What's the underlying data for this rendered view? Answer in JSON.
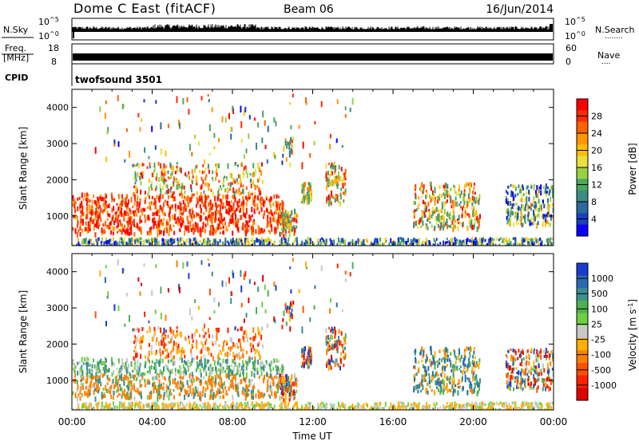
{
  "header": {
    "title": "Dome C East (fitACF)",
    "beam": "Beam 06",
    "date": "16/Jun/2014",
    "cpid_label": "CPID",
    "cpid_value": "twofsound 3501"
  },
  "chart_data": [
    {
      "type": "line",
      "name": "noise",
      "left_label": "N.Sky",
      "right_label": "N.Search",
      "right_dots": "........",
      "ylim_ticks": [
        "10^0",
        "10^5"
      ]
    },
    {
      "type": "line",
      "name": "frequency_nave",
      "left_label_lines": [
        "Freq.",
        "[MHz]"
      ],
      "left_ticks": [
        "18",
        "8"
      ],
      "right_label": "Nave",
      "right_dots": "....",
      "right_ticks": [
        "60",
        "0"
      ]
    },
    {
      "type": "heatmap",
      "name": "power",
      "ylabel": "Slant Range [km]",
      "ylim": [
        180,
        4500
      ],
      "yticks": [
        1000,
        2000,
        3000,
        4000
      ],
      "colorbar_label": "Power [dB]",
      "colorbar_ticks": [
        "28",
        "24",
        "20",
        "16",
        "12",
        "8",
        "4"
      ],
      "colorbar_colors": [
        "#ff0000",
        "#ff2a00",
        "#ff6000",
        "#ff9500",
        "#ffc000",
        "#e8e040",
        "#9ad040",
        "#4aa860",
        "#3a8d80",
        "#2a6aa0",
        "#1a3fc0",
        "#0a00ff"
      ]
    },
    {
      "type": "heatmap",
      "name": "velocity",
      "xlabel": "Time UT",
      "ylabel": "Slant Range [km]",
      "ylim": [
        180,
        4500
      ],
      "yticks": [
        1000,
        2000,
        3000,
        4000
      ],
      "xticks": [
        "00:00",
        "04:00",
        "08:00",
        "12:00",
        "16:00",
        "20:00",
        "00:00"
      ],
      "colorbar_label": "Velocity [m s",
      "colorbar_label_sup": "-1",
      "colorbar_label_end": "]",
      "colorbar_ticks": [
        "1000",
        "500",
        "100",
        "25",
        "-25",
        "-100",
        "-500",
        "-1000"
      ],
      "colorbar_colors": [
        "#1a3cd0",
        "#2a6bb0",
        "#3a9090",
        "#50b050",
        "#6ed040",
        "#c8c8c8",
        "#ffb000",
        "#ff8000",
        "#ff5000",
        "#ff2000",
        "#e00000"
      ]
    }
  ]
}
